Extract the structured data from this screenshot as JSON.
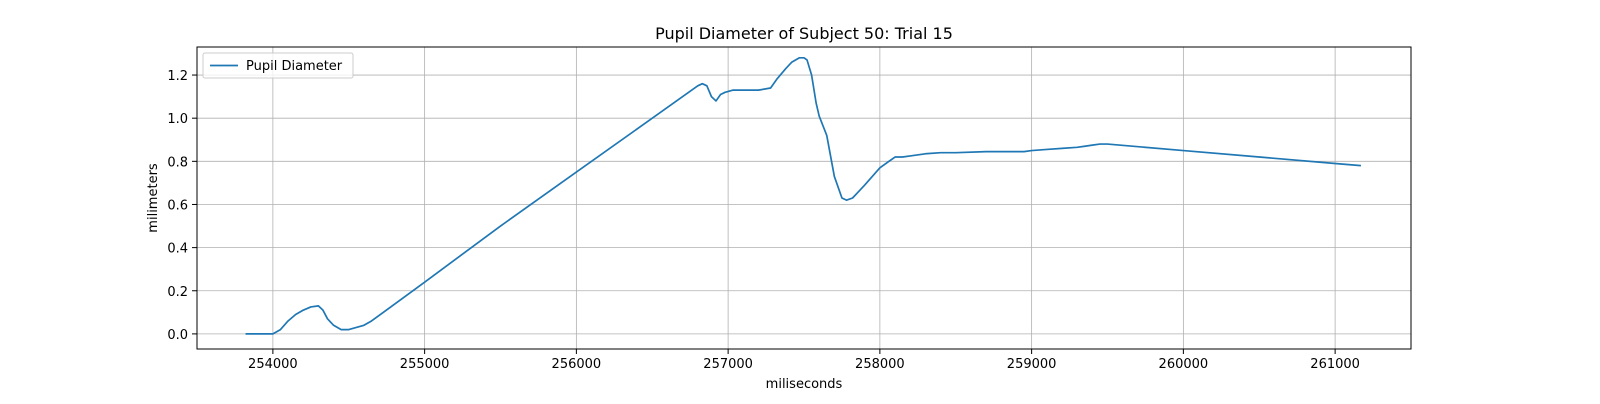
{
  "chart_data": {
    "type": "line",
    "title": "Pupil Diameter of Subject 50: Trial 15",
    "xlabel": "miliseconds",
    "ylabel": "milimeters",
    "xlim": [
      253500,
      261500
    ],
    "ylim": [
      -0.07,
      1.33
    ],
    "xticks": [
      254000,
      255000,
      256000,
      257000,
      258000,
      259000,
      260000,
      261000
    ],
    "yticks": [
      0.0,
      0.2,
      0.4,
      0.6,
      0.8,
      1.0,
      1.2
    ],
    "grid": true,
    "legend": {
      "position": "top-left",
      "entries": [
        "Pupil Diameter"
      ]
    },
    "colors": {
      "line": "#1f77b4",
      "grid": "#b0b0b0",
      "axes": "#000000"
    },
    "series": [
      {
        "name": "Pupil Diameter",
        "x": [
          253820,
          253900,
          254000,
          254050,
          254100,
          254150,
          254200,
          254250,
          254300,
          254330,
          254360,
          254400,
          254450,
          254500,
          254550,
          254600,
          254650,
          255000,
          255500,
          256000,
          256500,
          256800,
          256830,
          256860,
          256890,
          256920,
          256950,
          256980,
          257030,
          257100,
          257200,
          257280,
          257320,
          257380,
          257420,
          257470,
          257500,
          257520,
          257550,
          257580,
          257600,
          257650,
          257700,
          257750,
          257780,
          257820,
          257860,
          257900,
          258000,
          258100,
          258150,
          258200,
          258300,
          258400,
          258500,
          258700,
          258800,
          258950,
          259000,
          259100,
          259200,
          259300,
          259350,
          259400,
          259450,
          259500,
          260000,
          260500,
          261000,
          261170
        ],
        "y": [
          0.0,
          0.0,
          0.0,
          0.02,
          0.06,
          0.09,
          0.11,
          0.125,
          0.13,
          0.11,
          0.07,
          0.04,
          0.02,
          0.02,
          0.03,
          0.04,
          0.06,
          0.24,
          0.5,
          0.75,
          1.0,
          1.15,
          1.16,
          1.15,
          1.1,
          1.08,
          1.11,
          1.12,
          1.13,
          1.13,
          1.13,
          1.14,
          1.18,
          1.23,
          1.26,
          1.28,
          1.28,
          1.27,
          1.2,
          1.07,
          1.01,
          0.92,
          0.73,
          0.63,
          0.62,
          0.63,
          0.66,
          0.69,
          0.77,
          0.82,
          0.82,
          0.825,
          0.835,
          0.84,
          0.84,
          0.845,
          0.845,
          0.845,
          0.85,
          0.855,
          0.86,
          0.865,
          0.87,
          0.875,
          0.88,
          0.88,
          0.85,
          0.82,
          0.79,
          0.78
        ]
      }
    ]
  }
}
